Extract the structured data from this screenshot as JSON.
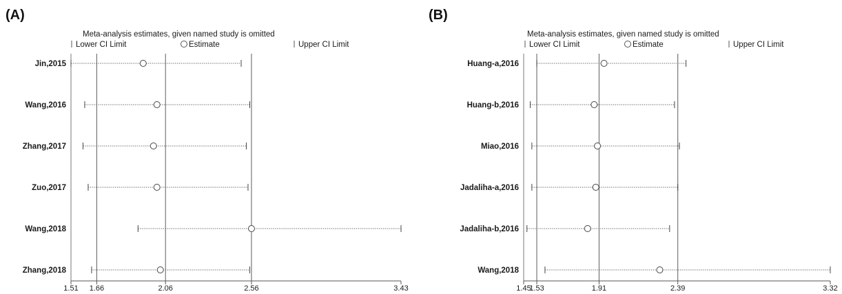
{
  "chart_data": [
    {
      "type": "scatter",
      "panel_label": "(A)",
      "title": "Meta-analysis estimates, given named study is omitted",
      "legend": {
        "lower": "Lower CI Limit",
        "estimate": "Estimate",
        "upper": "Upper CI Limit"
      },
      "xlim": [
        1.51,
        3.43
      ],
      "x_ticks": [
        1.51,
        1.66,
        2.06,
        2.56,
        3.43
      ],
      "x_tick_labels": [
        "1.51",
        "1.66",
        "2.06",
        "2.56",
        "3.43"
      ],
      "reference_lines": [
        1.66,
        2.06,
        2.56
      ],
      "studies": [
        {
          "label": "Jin,2015",
          "lower": 1.51,
          "estimate": 1.93,
          "upper": 2.5
        },
        {
          "label": "Wang,2016",
          "lower": 1.59,
          "estimate": 2.01,
          "upper": 2.55
        },
        {
          "label": "Zhang,2017",
          "lower": 1.58,
          "estimate": 1.99,
          "upper": 2.53
        },
        {
          "label": "Zuo,2017",
          "lower": 1.61,
          "estimate": 2.01,
          "upper": 2.54
        },
        {
          "label": "Wang,2018",
          "lower": 1.9,
          "estimate": 2.56,
          "upper": 3.43
        },
        {
          "label": "Zhang,2018",
          "lower": 1.63,
          "estimate": 2.03,
          "upper": 2.55
        }
      ]
    },
    {
      "type": "scatter",
      "panel_label": "(B)",
      "title": "Meta-analysis estimates, given named study is omitted",
      "legend": {
        "lower": "Lower CI Limit",
        "estimate": "Estimate",
        "upper": "Upper CI Limit"
      },
      "xlim": [
        1.45,
        3.32
      ],
      "x_ticks": [
        1.45,
        1.53,
        1.91,
        2.39,
        3.32
      ],
      "x_tick_labels": [
        "1.45",
        "1.53",
        "1.91",
        "2.39",
        "3.32"
      ],
      "reference_lines": [
        1.53,
        1.91,
        2.39
      ],
      "studies": [
        {
          "label": "Huang-a,2016",
          "lower": 1.53,
          "estimate": 1.94,
          "upper": 2.44
        },
        {
          "label": "Huang-b,2016",
          "lower": 1.49,
          "estimate": 1.88,
          "upper": 2.37
        },
        {
          "label": "Miao,2016",
          "lower": 1.5,
          "estimate": 1.9,
          "upper": 2.4
        },
        {
          "label": "Jadaliha-a,2016",
          "lower": 1.5,
          "estimate": 1.89,
          "upper": 2.39
        },
        {
          "label": "Jadaliha-b,2016",
          "lower": 1.47,
          "estimate": 1.84,
          "upper": 2.34
        },
        {
          "label": "Wang,2018",
          "lower": 1.58,
          "estimate": 2.28,
          "upper": 3.32
        }
      ]
    }
  ]
}
